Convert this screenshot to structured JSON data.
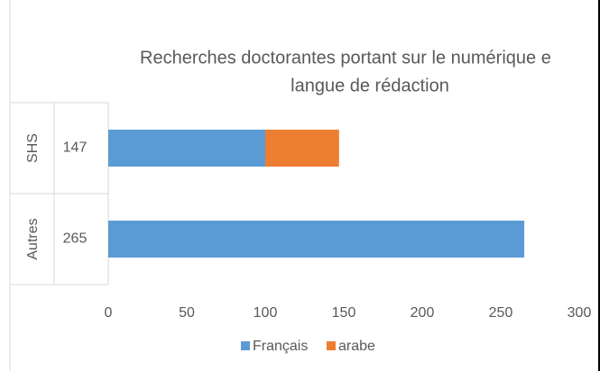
{
  "chart_data": {
    "type": "stacked_bar_horizontal",
    "title_lines": [
      "Recherches doctorantes portant sur le numérique e",
      "langue de rédaction"
    ],
    "category_groups": [
      "SHS",
      "Autres"
    ],
    "categories": [
      "147",
      "265"
    ],
    "series": [
      {
        "name": "Français",
        "color": "#5b9bd5",
        "values": [
          100,
          265
        ]
      },
      {
        "name": "arabe",
        "color": "#ed7d31",
        "values": [
          47,
          0
        ]
      }
    ],
    "xlim": [
      0,
      300
    ],
    "xticks": [
      0,
      50,
      100,
      150,
      200,
      250,
      300
    ],
    "legend": "bottom"
  }
}
